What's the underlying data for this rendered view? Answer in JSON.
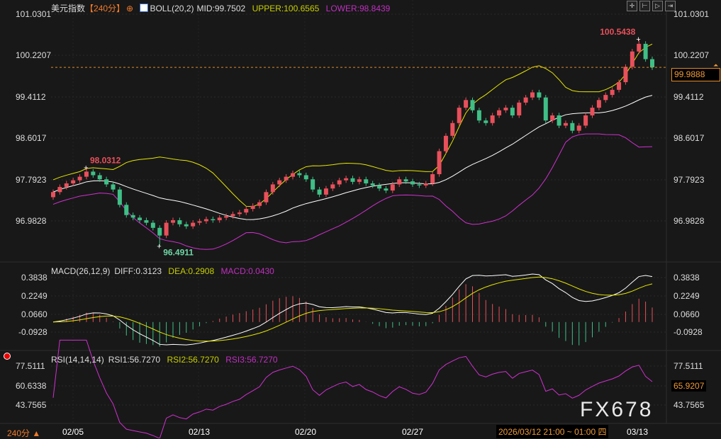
{
  "header": {
    "symbol": "美元指数",
    "period": "【240分】",
    "boll_label": "BOLL(20,2)",
    "mid": "MID:99.7502",
    "upper": "UPPER:100.6565",
    "lower": "LOWER:98.8439"
  },
  "macd_header": {
    "label": "MACD(26,12,9)",
    "diff": "DIFF:0.3123",
    "dea": "DEA:0.2908",
    "macd": "MACD:0.0430"
  },
  "rsi_header": {
    "label": "RSI(14,14,14)",
    "rsi1": "RSI1:56.7270",
    "rsi2": "RSI2:56.7270",
    "rsi3": "RSI3:56.7270"
  },
  "toolbar": [
    "✛",
    "⊢",
    "▷",
    "⇥"
  ],
  "price_axis": [
    "101.0301",
    "100.2207",
    "99.4112",
    "98.6017",
    "97.7923",
    "96.9828"
  ],
  "macd_axis": [
    "0.3838",
    "0.2249",
    "0.0660",
    "-0.0928"
  ],
  "rsi_axis": [
    "77.5111",
    "60.6338",
    "43.7565"
  ],
  "current_price": "99.9888",
  "current_rsi": "65.9207",
  "period_selector": "240分 ▲",
  "date_labels": [
    "02/05",
    "02/13",
    "02/20",
    "02/27",
    "03/13"
  ],
  "cursor_time": "2026/03/12 21:00 ~ 01:00 四",
  "watermark": "FX678",
  "colors": {
    "up": "#e8505b",
    "down": "#3fbf86",
    "mid": "#ffffff",
    "upper": "#e6e600",
    "lower": "#d030d0",
    "accent": "#f09a3a"
  },
  "chart_data": {
    "type": "candlestick",
    "title": "美元指数",
    "ylim": [
      96.4,
      101.1
    ],
    "close": [
      97.55,
      97.65,
      97.72,
      97.78,
      97.85,
      97.95,
      97.88,
      97.8,
      97.7,
      97.6,
      97.3,
      97.1,
      97.05,
      97.0,
      96.95,
      96.85,
      96.7,
      96.95,
      97.0,
      96.92,
      96.88,
      96.95,
      96.98,
      97.02,
      97.0,
      97.05,
      97.08,
      97.12,
      97.15,
      97.22,
      97.28,
      97.35,
      97.55,
      97.7,
      97.78,
      97.85,
      97.92,
      97.88,
      97.8,
      97.6,
      97.5,
      97.62,
      97.7,
      97.78,
      97.82,
      97.75,
      97.8,
      97.72,
      97.68,
      97.62,
      97.58,
      97.7,
      97.8,
      97.76,
      97.7,
      97.68,
      97.72,
      97.9,
      98.35,
      98.65,
      98.9,
      99.2,
      99.35,
      99.15,
      98.95,
      98.9,
      99.05,
      99.15,
      99.2,
      99.05,
      99.3,
      99.4,
      99.5,
      99.4,
      98.95,
      99.05,
      98.85,
      98.9,
      98.75,
      98.85,
      99.05,
      99.2,
      99.35,
      99.45,
      99.55,
      99.7,
      100.0,
      100.3,
      100.45,
      100.15,
      99.99
    ],
    "annotations": [
      {
        "index": 5,
        "value": 98.0312,
        "label": "98.0312",
        "type": "high"
      },
      {
        "index": 16,
        "value": 96.4911,
        "label": "96.4911",
        "type": "low"
      },
      {
        "index": 88,
        "value": 100.5438,
        "label": "100.5438",
        "type": "high"
      }
    ],
    "indicators": {
      "boll": [
        20,
        2
      ],
      "macd": [
        26,
        12,
        9
      ],
      "rsi": [
        14,
        14,
        14
      ]
    },
    "macd_ylim": [
      -0.16,
      0.42
    ],
    "rsi_ylim": [
      30,
      85
    ]
  }
}
